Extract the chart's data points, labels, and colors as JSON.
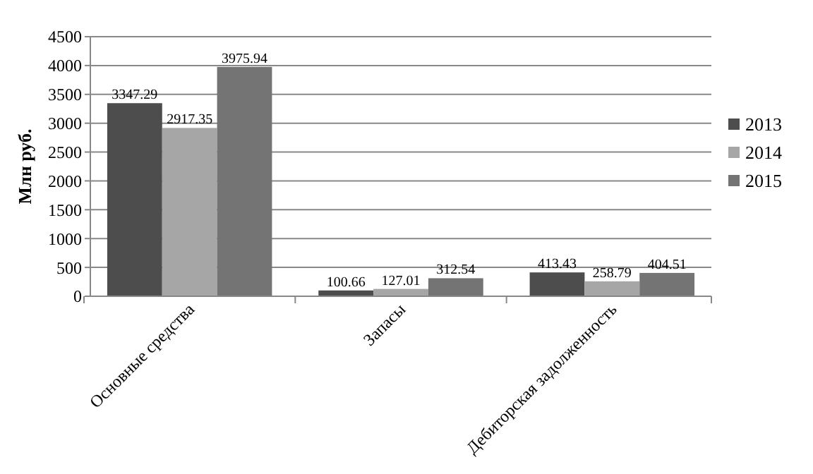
{
  "chart_data": {
    "type": "bar",
    "ylabel": "Млн руб.",
    "categories": [
      "Основные средства",
      "Запасы",
      "Дебиторская задолженность"
    ],
    "series": [
      {
        "name": "2013",
        "color": "#4d4d4d",
        "values": [
          3347.29,
          100.66,
          413.43
        ]
      },
      {
        "name": "2014",
        "color": "#a6a6a6",
        "values": [
          2917.35,
          127.01,
          258.79
        ]
      },
      {
        "name": "2015",
        "color": "#747474",
        "values": [
          3975.94,
          312.54,
          404.51
        ]
      }
    ],
    "ylim": [
      0,
      4500
    ],
    "yticks": [
      0,
      500,
      1000,
      1500,
      2000,
      2500,
      3000,
      3500,
      4000,
      4500
    ],
    "grid": "y",
    "legend": "right",
    "data_labels": true
  }
}
